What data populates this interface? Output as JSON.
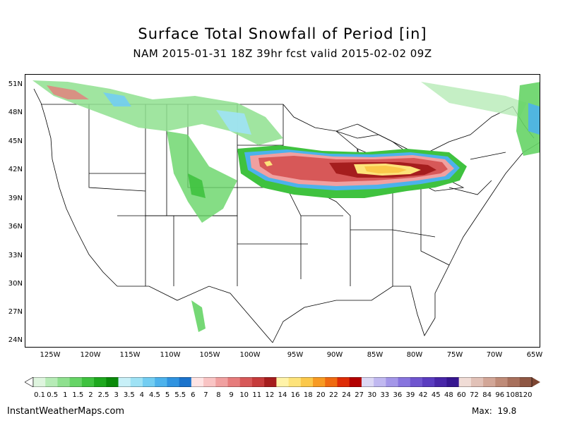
{
  "title": "Surface Total Snowfall of Period [in]",
  "subtitle": "NAM 2015-01-31 18Z 39hr fcst valid 2015-02-02 09Z",
  "lat_labels": [
    "51N",
    "48N",
    "45N",
    "42N",
    "39N",
    "36N",
    "33N",
    "30N",
    "27N",
    "24N"
  ],
  "lon_labels": [
    "125W",
    "120W",
    "115W",
    "110W",
    "105W",
    "100W",
    "95W",
    "90W",
    "85W",
    "80W",
    "75W",
    "70W",
    "65W"
  ],
  "colorbar": {
    "labels": [
      "0.1",
      "0.5",
      "1",
      "1.5",
      "2",
      "2.5",
      "3",
      "3.5",
      "4",
      "4.5",
      "5",
      "5.5",
      "6",
      "7",
      "8",
      "9",
      "10",
      "11",
      "12",
      "14",
      "16",
      "18",
      "20",
      "22",
      "24",
      "27",
      "30",
      "33",
      "36",
      "39",
      "42",
      "45",
      "48",
      "60",
      "72",
      "84",
      "96",
      "108",
      "120"
    ],
    "colors": [
      "#dff5df",
      "#b6ebb6",
      "#8fe08f",
      "#66d466",
      "#3fc23f",
      "#1ea81e",
      "#0a8a0a",
      "#c8f0f8",
      "#9ee2f5",
      "#72cdf2",
      "#4cb2ec",
      "#2f93e0",
      "#1b73cc",
      "#ffe4e4",
      "#f9c4c4",
      "#f0a0a0",
      "#e67c7c",
      "#d75858",
      "#c63b3b",
      "#a51d1d",
      "#fff3a8",
      "#fde37a",
      "#fbc84a",
      "#f79a22",
      "#ef6a10",
      "#de2c06",
      "#b30000",
      "#dcd8f5",
      "#c0b8f0",
      "#a396e8",
      "#8774de",
      "#6f55cf",
      "#5a3cc0",
      "#4826a8",
      "#361690",
      "#f0dcd6",
      "#e1c1b7",
      "#d2a697",
      "#bf8b78",
      "#a8705c",
      "#8f5744"
    ],
    "arrow_colors": [
      "#ffffff",
      "#7d4632"
    ]
  },
  "footer": {
    "left": "InstantWeatherMaps.com",
    "right": "Max:  19.8"
  }
}
